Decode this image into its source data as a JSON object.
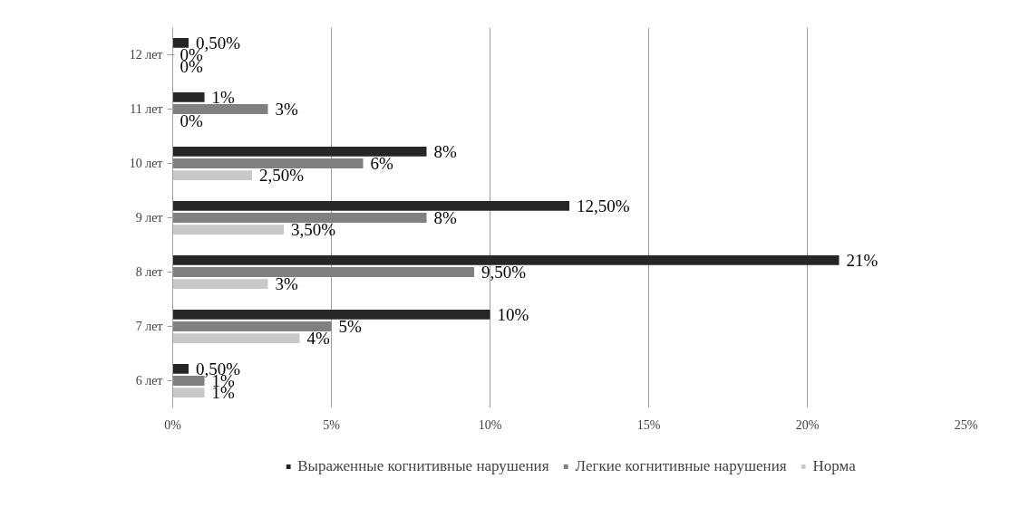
{
  "chart_data": {
    "type": "bar",
    "orientation": "horizontal",
    "categories": [
      "12 лет",
      "11 лет",
      "10 лет",
      "9 лет",
      "8 лет",
      "7 лет",
      "6 лет"
    ],
    "series": [
      {
        "name": "Выраженные когнитивные нарушения",
        "color": "#262626",
        "values": [
          0.5,
          1,
          8,
          12.5,
          21,
          10,
          0.5
        ],
        "value_labels": [
          "0,50%",
          "1%",
          "8%",
          "12,50%",
          "21%",
          "10%",
          "0,50%"
        ]
      },
      {
        "name": "Легкие когнитивные нарушения",
        "color": "#808080",
        "values": [
          0,
          3,
          6,
          8,
          9.5,
          5,
          1
        ],
        "value_labels": [
          "0%",
          "3%",
          "6%",
          "8%",
          "9,50%",
          "5%",
          "1%"
        ]
      },
      {
        "name": "Норма",
        "color": "#c8c8c8",
        "values": [
          0,
          0,
          2.5,
          3.5,
          3,
          4,
          1
        ],
        "value_labels": [
          "0%",
          "0%",
          "2,50%",
          "3,50%",
          "3%",
          "4%",
          "1%"
        ]
      }
    ],
    "xlim": [
      0,
      25
    ],
    "xticks": [
      {
        "value": 0,
        "label": "0%"
      },
      {
        "value": 5,
        "label": "5%"
      },
      {
        "value": 10,
        "label": "10%"
      },
      {
        "value": 15,
        "label": "15%"
      },
      {
        "value": 20,
        "label": "20%"
      },
      {
        "value": 25,
        "label": "25%"
      }
    ],
    "grid": "x",
    "legend": "bottom"
  }
}
